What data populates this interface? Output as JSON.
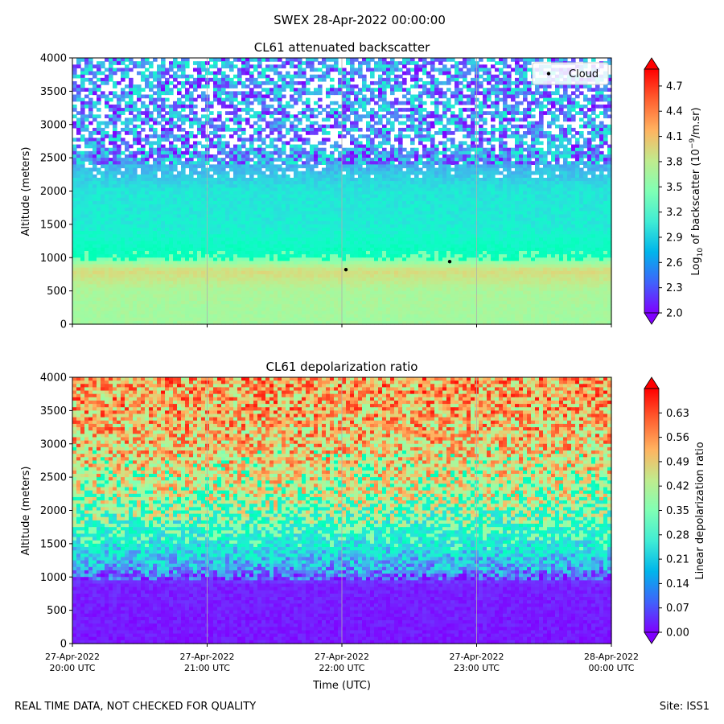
{
  "suptitle": "SWEX 28-Apr-2022 00:00:00",
  "footer_left": "REAL TIME DATA, NOT CHECKED FOR QUALITY",
  "footer_right": "Site: ISS1",
  "chart_data": [
    {
      "type": "heatmap",
      "title": "CL61 attenuated backscatter",
      "ylabel": "Altitude (meters)",
      "xlabel": "",
      "ylim": [
        0,
        4000
      ],
      "yticks": [
        0,
        500,
        1000,
        1500,
        2000,
        2500,
        3000,
        3500,
        4000
      ],
      "xticks": [
        "27-Apr-2022\n20:00 UTC",
        "27-Apr-2022\n21:00 UTC",
        "27-Apr-2022\n22:00 UTC",
        "27-Apr-2022\n23:00 UTC",
        "28-Apr-2022\n00:00 UTC"
      ],
      "colorbar": {
        "label_prefix": "Log",
        "label_sub": "10",
        "label_mid": " of backscatter (10",
        "label_sup": "−9",
        "label_suffix": "/m.sr)",
        "range": [
          2.0,
          4.9
        ],
        "ticks": [
          "2.0",
          "2.3",
          "2.6",
          "2.9",
          "3.2",
          "3.5",
          "3.8",
          "4.1",
          "4.4",
          "4.7"
        ]
      },
      "legend": {
        "label": "Cloud",
        "position": "top-right"
      },
      "cloud_points": [
        {
          "time_hours": 2.03,
          "altitude": 820
        },
        {
          "time_hours": 2.8,
          "altitude": 940
        }
      ],
      "profile": [
        {
          "altitude": 0,
          "value": 3.65
        },
        {
          "altitude": 500,
          "value": 3.7
        },
        {
          "altitude": 800,
          "value": 3.95
        },
        {
          "altitude": 1000,
          "value": 3.4
        },
        {
          "altitude": 1500,
          "value": 3.1
        },
        {
          "altitude": 2000,
          "value": 3.05
        },
        {
          "altitude": 2500,
          "value": 2.6
        },
        {
          "altitude": 4000,
          "value": 2.6
        }
      ]
    },
    {
      "type": "heatmap",
      "title": "CL61 depolarization ratio",
      "ylabel": "Altitude (meters)",
      "xlabel": "Time (UTC)",
      "ylim": [
        0,
        4000
      ],
      "yticks": [
        0,
        500,
        1000,
        1500,
        2000,
        2500,
        3000,
        3500,
        4000
      ],
      "xticks": [
        "27-Apr-2022\n20:00 UTC",
        "27-Apr-2022\n21:00 UTC",
        "27-Apr-2022\n22:00 UTC",
        "27-Apr-2022\n23:00 UTC",
        "28-Apr-2022\n00:00 UTC"
      ],
      "colorbar": {
        "label": "Linear depolarization ratio",
        "range": [
          0.0,
          0.7
        ],
        "ticks": [
          "0.00",
          "0.07",
          "0.14",
          "0.21",
          "0.28",
          "0.35",
          "0.42",
          "0.49",
          "0.56",
          "0.63"
        ]
      },
      "profile": [
        {
          "altitude": 0,
          "value": 0.02
        },
        {
          "altitude": 900,
          "value": 0.03
        },
        {
          "altitude": 1100,
          "value": 0.15
        },
        {
          "altitude": 1600,
          "value": 0.3
        },
        {
          "altitude": 2200,
          "value": 0.42
        },
        {
          "altitude": 3000,
          "value": 0.5
        },
        {
          "altitude": 4000,
          "value": 0.55
        }
      ]
    }
  ]
}
